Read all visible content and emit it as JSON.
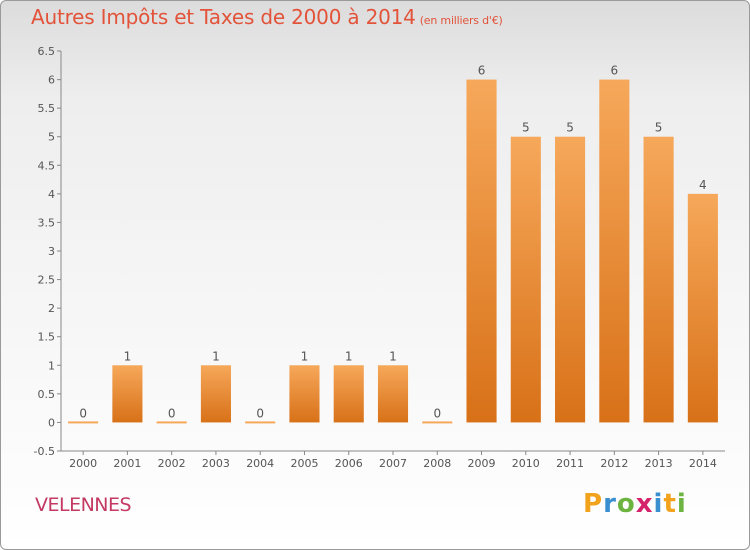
{
  "title": "Autres Impôts et Taxes de 2000 à 2014",
  "title_unit": "(en milliers d'€)",
  "commune": "VELENNES",
  "logo": {
    "letters": [
      "P",
      "r",
      "o",
      "x",
      "i",
      "t",
      "i"
    ],
    "colors": [
      "#f2a21b",
      "#3a8fd0",
      "#6cb33f",
      "#d4236b",
      "#3a8fd0",
      "#f2a21b",
      "#6cb33f"
    ]
  },
  "colors": {
    "bar_top": "#f6a85a",
    "bar_bottom": "#d87118",
    "title": "#e2533a",
    "commune": "#c43a62"
  },
  "chart_data": {
    "type": "bar",
    "categories": [
      "2000",
      "2001",
      "2002",
      "2003",
      "2004",
      "2005",
      "2006",
      "2007",
      "2008",
      "2009",
      "2010",
      "2011",
      "2012",
      "2013",
      "2014"
    ],
    "values": [
      0,
      1,
      0,
      1,
      0,
      1,
      1,
      1,
      0,
      6,
      5,
      5,
      6,
      5,
      4
    ],
    "data_labels": [
      "0",
      "1",
      "0",
      "1",
      "0",
      "1",
      "1",
      "1",
      "0",
      "6",
      "5",
      "5",
      "6",
      "5",
      "4"
    ],
    "yticks": [
      -0.5,
      0,
      0.5,
      1,
      1.5,
      2,
      2.5,
      3,
      3.5,
      4,
      4.5,
      5,
      5.5,
      6,
      6.5
    ],
    "ytick_labels": [
      "-0.5",
      "0",
      "0.5",
      "1",
      "1.5",
      "2",
      "2.5",
      "3",
      "3.5",
      "4",
      "4.5",
      "5",
      "5.5",
      "6",
      "6.5"
    ],
    "ylim": [
      -0.5,
      6.5
    ],
    "grid": false,
    "xlabel": "",
    "ylabel": ""
  }
}
